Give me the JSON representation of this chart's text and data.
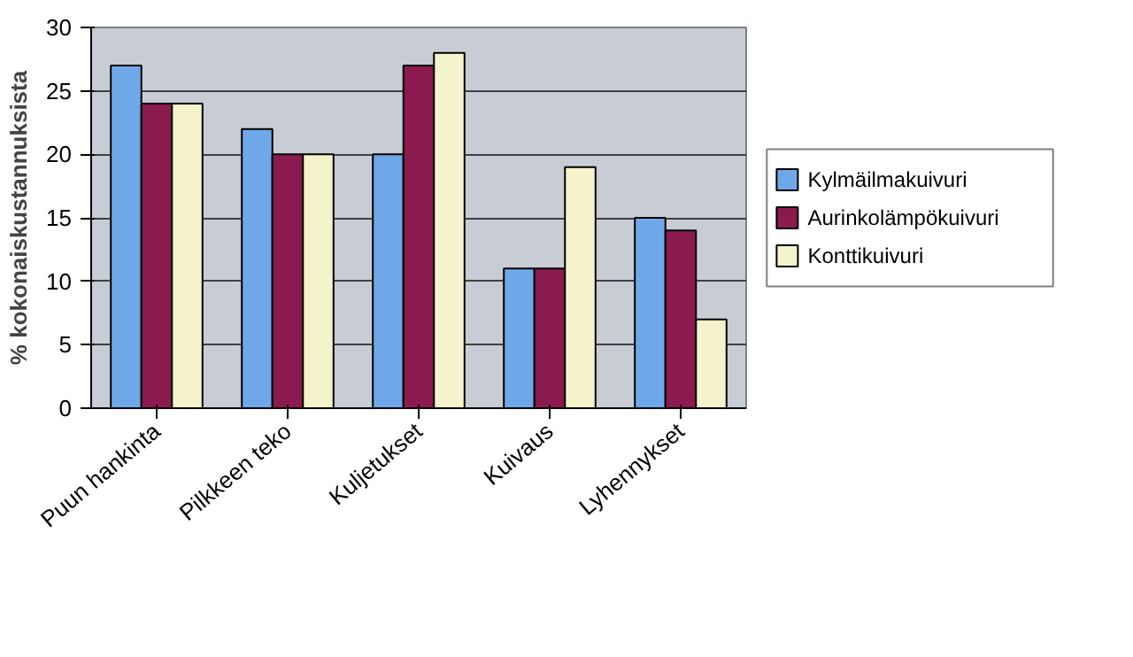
{
  "chart_data": {
    "type": "bar",
    "ylabel": "% kokonaiskustannuksista",
    "categories": [
      "Puun hankinta",
      "Pilkkeen teko",
      "Kuljetukset",
      "Kuivaus",
      "Lyhennykset"
    ],
    "series": [
      {
        "name": "Kylmäilmakuivuri",
        "color": "#6fa8e8",
        "values": [
          27,
          22,
          20,
          11,
          15
        ]
      },
      {
        "name": "Aurinkolämpökuivuri",
        "color": "#8b1a4f",
        "values": [
          24,
          20,
          27,
          11,
          14
        ]
      },
      {
        "name": "Konttikuivuri",
        "color": "#f5f3cc",
        "values": [
          24,
          20,
          28,
          19,
          7
        ]
      }
    ],
    "ylim": [
      0,
      30
    ],
    "yticks": [
      0,
      5,
      10,
      15,
      20,
      25,
      30
    ],
    "grid": "y",
    "legend": "right"
  }
}
